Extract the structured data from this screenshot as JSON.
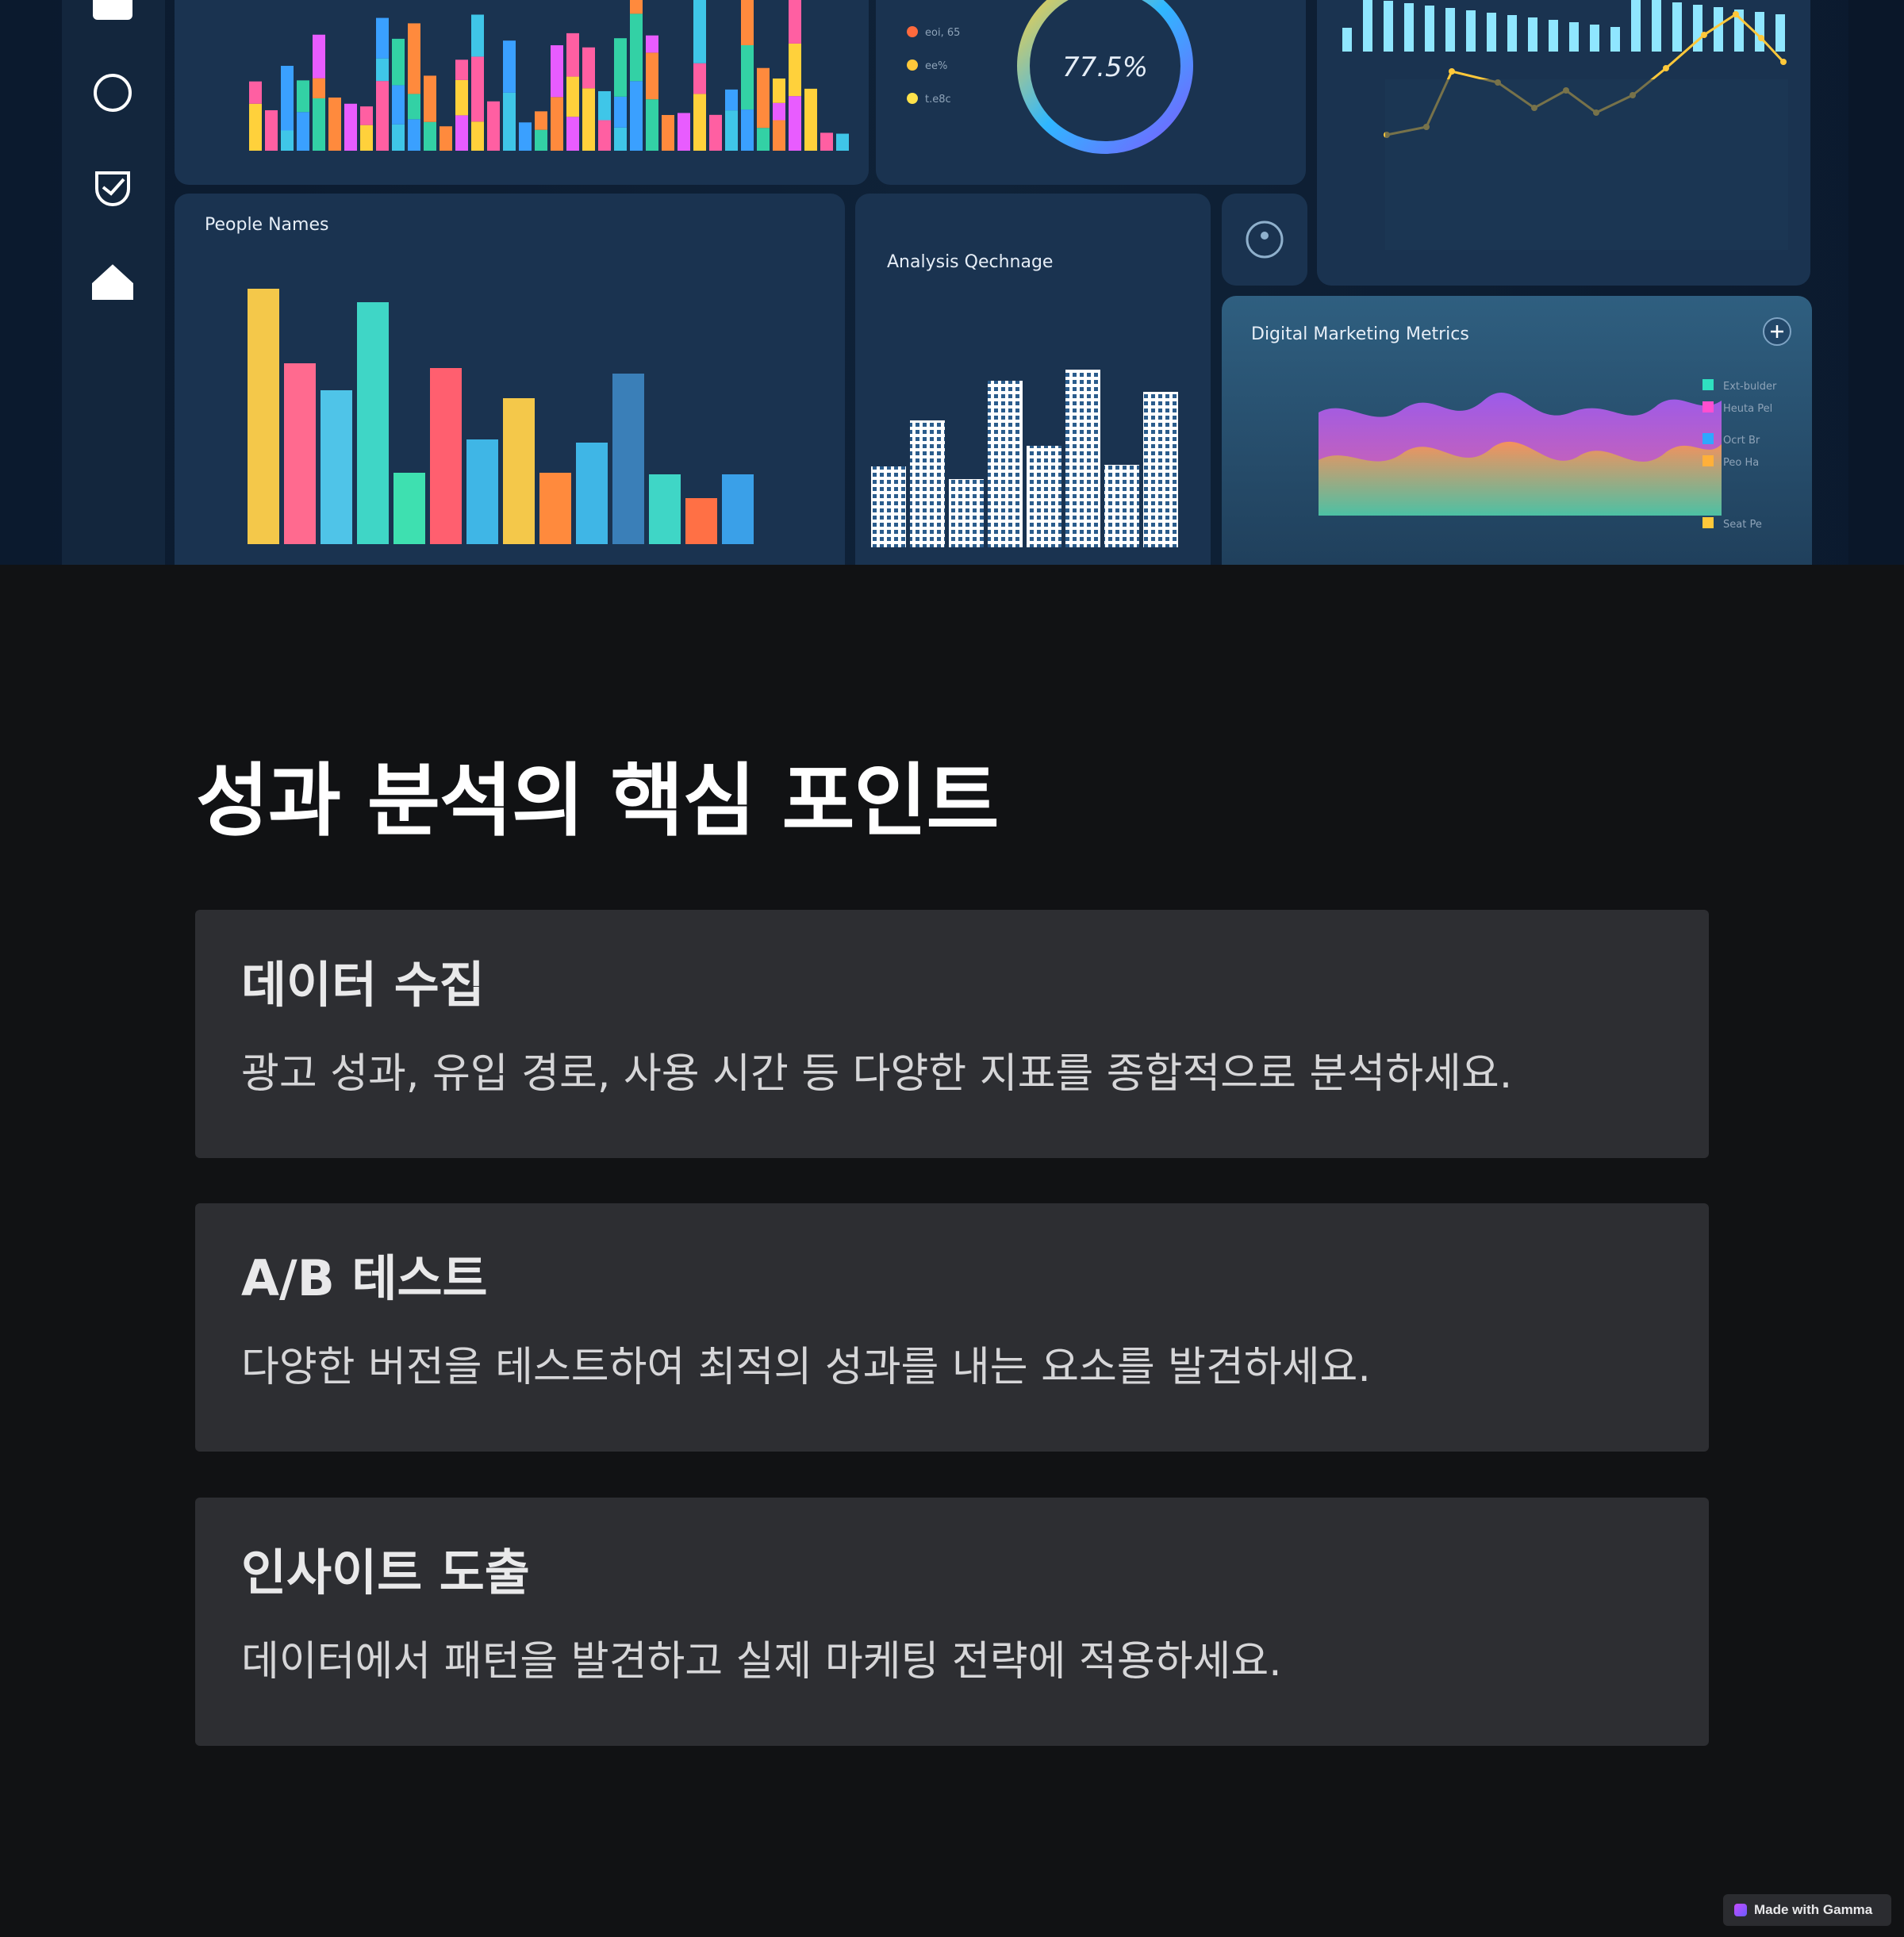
{
  "hero": {
    "panels": {
      "people_names": "People Names",
      "analysis_exchange": "Analysis Qechnage",
      "digital_marketing": "Digital Marketing Metrics",
      "donut_value": "77.5%"
    },
    "donut_legend": [
      "eoi, 65",
      "ee%",
      "t.e8c"
    ],
    "dm_legend": [
      "Ext-bulder",
      "Heuta Pel",
      "Ocrt Br",
      "Peo Ha",
      "Seat Pe"
    ]
  },
  "colors": {
    "background": "#111214",
    "card": "#2d2e32",
    "title": "#ffffff",
    "text": "#d6d6d8"
  },
  "title": "성과 분석의 핵심 포인트",
  "cards": [
    {
      "heading": "데이터 수집",
      "body": "광고 성과, 유입 경로, 사용 시간 등 다양한 지표를 종합적으로 분석하세요."
    },
    {
      "heading": "A/B 테스트",
      "body": "다양한 버전을 테스트하여 최적의 성과를 내는 요소를 발견하세요."
    },
    {
      "heading": "인사이트 도출",
      "body": "데이터에서 패턴을 발견하고 실제 마케팅 전략에 적용하세요."
    }
  ],
  "badge": {
    "label": "Made with Gamma",
    "icon": "gamma-logo-icon"
  }
}
